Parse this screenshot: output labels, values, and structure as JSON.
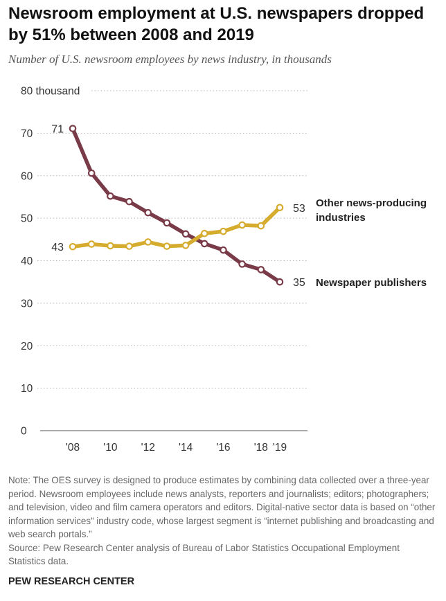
{
  "header": {
    "title": "Newsroom employment at U.S. newspapers dropped by 51% between 2008 and 2019",
    "subtitle": "Number of U.S. newsroom employees by news industry, in thousands"
  },
  "chart_data": {
    "type": "line",
    "title": "Newsroom employment at U.S. newspapers dropped by 51% between 2008 and 2019",
    "subtitle": "Number of U.S. newsroom employees by news industry, in thousands",
    "xlabel": "",
    "ylabel": "",
    "x": [
      2008,
      2009,
      2010,
      2011,
      2012,
      2013,
      2014,
      2015,
      2016,
      2017,
      2018,
      2019
    ],
    "x_tick_labels": [
      {
        "x": 2008,
        "label": "'08"
      },
      {
        "x": 2010,
        "label": "'10"
      },
      {
        "x": 2012,
        "label": "'12"
      },
      {
        "x": 2014,
        "label": "'14"
      },
      {
        "x": 2016,
        "label": "'16"
      },
      {
        "x": 2018,
        "label": "'18"
      },
      {
        "x": 2019,
        "label": "'19"
      }
    ],
    "y_ticks": [
      {
        "value": 0,
        "label": "0"
      },
      {
        "value": 10,
        "label": "10"
      },
      {
        "value": 20,
        "label": "20"
      },
      {
        "value": 30,
        "label": "30"
      },
      {
        "value": 40,
        "label": "40"
      },
      {
        "value": 50,
        "label": "50"
      },
      {
        "value": 60,
        "label": "60"
      },
      {
        "value": 70,
        "label": "70"
      },
      {
        "value": 80,
        "label": "80 thousand"
      }
    ],
    "ylim": [
      0,
      80
    ],
    "grid": "horizontal dotted",
    "series": [
      {
        "name": "Newspaper publishers",
        "color": "#7a3b48",
        "values": [
          71.1,
          60.6,
          55.2,
          53.9,
          51.3,
          48.9,
          46.3,
          44.0,
          42.5,
          39.2,
          37.9,
          35.0
        ],
        "start_label": "71",
        "end_label": "35",
        "series_label": [
          "Newspaper publishers"
        ]
      },
      {
        "name": "Other news-producing industries",
        "color": "#d6ac2e",
        "values": [
          43.3,
          43.9,
          43.5,
          43.4,
          44.4,
          43.4,
          43.6,
          46.4,
          46.9,
          48.4,
          48.2,
          52.5
        ],
        "start_label": "43",
        "end_label": "53",
        "series_label": [
          "Other news-producing",
          "industries"
        ]
      }
    ]
  },
  "footer": {
    "note": "Note: The OES survey is designed to produce estimates by combining data collected over a three-year period. Newsroom employees include news analysts, reporters and journalists; editors; photographers; and television, video and film camera operators and editors. Digital-native sector data is based on “other information services” industry code, whose largest segment is “internet publishing and broadcasting and web search portals.”",
    "source": "Source: Pew Research Center analysis of Bureau of Labor Statistics Occupational Employment Statistics data.",
    "brand": "PEW RESEARCH CENTER"
  }
}
